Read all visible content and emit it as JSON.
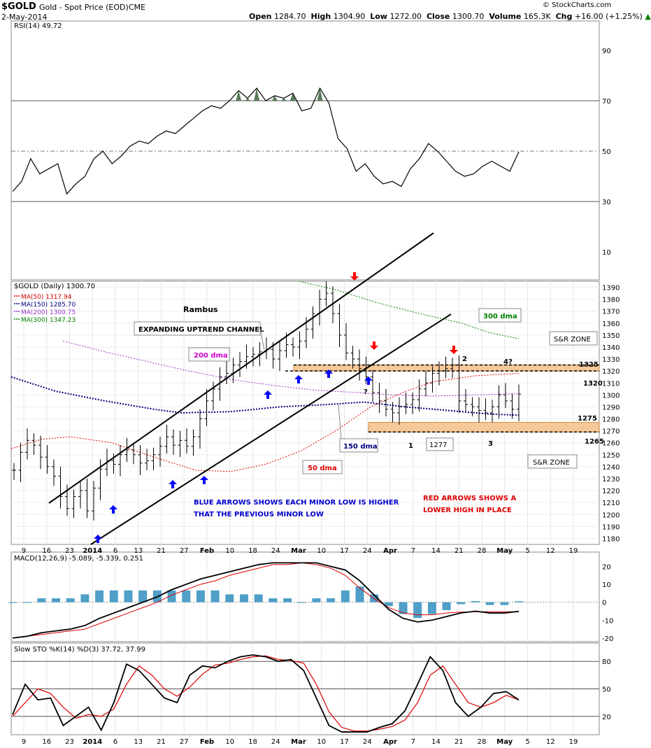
{
  "header": {
    "symbol": "$GOLD",
    "name": "Gold - Spot Price (EOD)",
    "exchange": "CME",
    "date": "2-May-2014",
    "open_label": "Open",
    "open": "1284.70",
    "high_label": "High",
    "high": "1304.90",
    "low_label": "Low",
    "low": "1272.00",
    "close_label": "Close",
    "close": "1300.70",
    "volume_label": "Volume",
    "volume": "165.3K",
    "chg_label": "Chg",
    "chg": "+16.00 (+1.25%)",
    "chg_arrow": "▲",
    "copyright": "© StockCharts.com"
  },
  "colors": {
    "ma50": "#dd0000",
    "ma150": "#000080",
    "ma200": "#9933cc",
    "ma300": "#008000",
    "zone": "#f7c99a",
    "macd_hist": "#4f9fc8",
    "blue_arrow": "#0000ff",
    "red_arrow": "#ff0000",
    "rsi_fill": "#5a7a5a"
  },
  "x_axis": {
    "labels": [
      "9",
      "16",
      "23",
      "2014",
      "6",
      "13",
      "21",
      "27",
      "Feb",
      "10",
      "18",
      "24",
      "Mar",
      "10",
      "17",
      "24",
      "Apr",
      "7",
      "14",
      "21",
      "28",
      "May",
      "5",
      "12",
      "19"
    ]
  },
  "chart_data": [
    {
      "type": "line",
      "panel": "rsi",
      "title": "RSI(14) 49.72",
      "ylim": [
        0,
        100
      ],
      "y_ticks": [
        90,
        70,
        50,
        30,
        10
      ],
      "reference_lines": [
        70,
        50,
        30
      ],
      "values": [
        34,
        38,
        47,
        41,
        43,
        45,
        33,
        37,
        40,
        47,
        50,
        45,
        48,
        52,
        54,
        53,
        56,
        58,
        57,
        60,
        63,
        66,
        68,
        67,
        70,
        74,
        71,
        75,
        70,
        72,
        71,
        73,
        66,
        67,
        75,
        69,
        55,
        51,
        42,
        45,
        40,
        37,
        38,
        36,
        43,
        47,
        53,
        50,
        46,
        42,
        40,
        41,
        44,
        46,
        44,
        42,
        49.72
      ]
    },
    {
      "type": "candlestick",
      "panel": "price",
      "title": "$GOLD (Daily) 1300.70",
      "ylim": [
        1175,
        1395
      ],
      "y_ticks": [
        1390,
        1380,
        1370,
        1360,
        1350,
        1340,
        1330,
        1320,
        1310,
        1300,
        1290,
        1280,
        1270,
        1260,
        1250,
        1240,
        1230,
        1220,
        1210,
        1200,
        1190,
        1180
      ],
      "legend": [
        {
          "name": "MA(50) 1317.94",
          "color": "#dd0000"
        },
        {
          "name": "MA(150) 1285.70",
          "color": "#000080"
        },
        {
          "name": "MA(200) 1300.75",
          "color": "#9933cc"
        },
        {
          "name": "MA(300) 1347.23",
          "color": "#008000"
        }
      ],
      "close": [
        1237,
        1252,
        1262,
        1258,
        1248,
        1240,
        1232,
        1215,
        1205,
        1215,
        1220,
        1203,
        1222,
        1238,
        1245,
        1242,
        1250,
        1254,
        1250,
        1243,
        1245,
        1250,
        1257,
        1265,
        1258,
        1262,
        1257,
        1265,
        1280,
        1295,
        1305,
        1315,
        1318,
        1325,
        1328,
        1332,
        1334,
        1336,
        1338,
        1330,
        1337,
        1342,
        1340,
        1345,
        1355,
        1368,
        1380,
        1385,
        1368,
        1350,
        1335,
        1330,
        1322,
        1315,
        1302,
        1295,
        1288,
        1285,
        1290,
        1292,
        1296,
        1305,
        1310,
        1318,
        1320,
        1322,
        1325,
        1295,
        1292,
        1290,
        1287,
        1285,
        1290,
        1300,
        1295,
        1288,
        1300.7
      ],
      "annotations": {
        "rambus": "Rambus",
        "channel": "EXPANDING UPTREND CHANNEL",
        "dma300": "300 dma",
        "dma200": "200 dma",
        "dma150": "150 dma",
        "dma50": "50 dma",
        "sr_zone_top": "S&R ZONE",
        "sr_zone_bottom": "S&R ZONE",
        "lvl_1325": "1325",
        "lvl_1320": "1320",
        "lvl_1275": "1275",
        "lvl_1265": "1265",
        "lvl_1277": "1277",
        "n1": "1",
        "n2": "2",
        "n3": "3",
        "n4": "4?",
        "q": "?",
        "blue_note_1": "BLUE ARROWS SHOWS EACH MINOR LOW IS HIGHER",
        "blue_note_2": "THAT THE PREVIOUS MINOR LOW",
        "red_note_1": "RED ARROWS SHOWS A",
        "red_note_2": "LOWER HIGH IN PLACE"
      }
    },
    {
      "type": "line",
      "panel": "macd",
      "title": "MACD(12,26,9) -5.089, -5.339, 0.251",
      "ylim": [
        -22,
        28
      ],
      "y_ticks": [
        20,
        10,
        0,
        -10,
        -20
      ],
      "series": [
        {
          "name": "MACD",
          "values": [
            -20,
            -19,
            -17,
            -16,
            -15,
            -13,
            -9,
            -6,
            -3,
            0,
            3,
            7,
            10,
            13,
            15,
            17,
            19,
            21,
            22,
            22,
            22,
            22,
            20,
            18,
            12,
            4,
            -4,
            -9,
            -11,
            -10,
            -8,
            -6,
            -5,
            -6,
            -6,
            -5.089
          ]
        },
        {
          "name": "Signal",
          "values": [
            -20,
            -19,
            -18,
            -17,
            -16,
            -15,
            -12,
            -9,
            -6,
            -3,
            0,
            4,
            7,
            10,
            12,
            15,
            17,
            19,
            21,
            21,
            22,
            21,
            19,
            15,
            8,
            2,
            -3,
            -6,
            -7,
            -7,
            -6,
            -5.5,
            -5.3,
            -5.3,
            -5.3,
            -5.339
          ]
        }
      ]
    },
    {
      "type": "line",
      "panel": "stochastic",
      "title": "Slow STO %K(14) %D(3) 37.72, 37.99",
      "ylim": [
        0,
        100
      ],
      "y_ticks": [
        80,
        50,
        20
      ],
      "series": [
        {
          "name": "%K",
          "values": [
            22,
            55,
            38,
            40,
            10,
            20,
            30,
            5,
            35,
            77,
            70,
            55,
            40,
            35,
            65,
            75,
            73,
            80,
            85,
            87,
            85,
            80,
            82,
            70,
            40,
            10,
            3,
            3,
            3,
            8,
            12,
            26,
            55,
            85,
            70,
            35,
            20,
            30,
            45,
            47,
            38
          ]
        },
        {
          "name": "%D",
          "values": [
            20,
            35,
            50,
            45,
            30,
            18,
            22,
            20,
            28,
            55,
            75,
            65,
            50,
            42,
            52,
            66,
            76,
            78,
            82,
            85,
            86,
            82,
            81,
            78,
            55,
            25,
            8,
            4,
            4,
            6,
            9,
            16,
            35,
            65,
            75,
            55,
            35,
            30,
            35,
            43,
            37.99
          ]
        }
      ]
    }
  ]
}
